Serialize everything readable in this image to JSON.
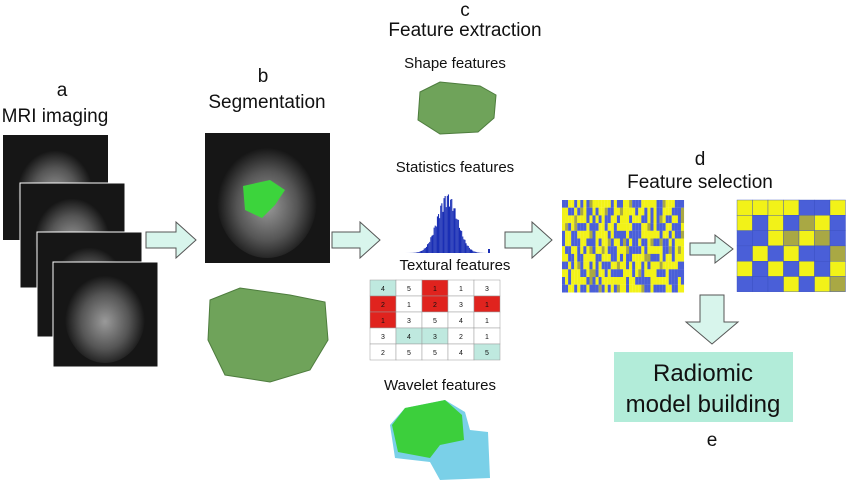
{
  "steps": {
    "a": {
      "letter": "a",
      "title": "MRI imaging"
    },
    "b": {
      "letter": "b",
      "title": "Segmentation"
    },
    "c": {
      "letter": "c",
      "title": "Feature extraction",
      "features": [
        "Shape features",
        "Statistics features",
        "Textural features",
        "Wavelet features"
      ],
      "texture_grid": [
        [
          "4",
          "5",
          "1",
          "1",
          "3"
        ],
        [
          "2",
          "1",
          "2",
          "3",
          "1"
        ],
        [
          "1",
          "3",
          "5",
          "4",
          "1"
        ],
        [
          "3",
          "4",
          "3",
          "2",
          "1"
        ],
        [
          "2",
          "5",
          "5",
          "4",
          "5"
        ]
      ]
    },
    "d": {
      "letter": "d",
      "title": "Feature selection"
    },
    "e": {
      "letter": "e",
      "lines": [
        "Radiomic",
        "model building"
      ]
    }
  }
}
